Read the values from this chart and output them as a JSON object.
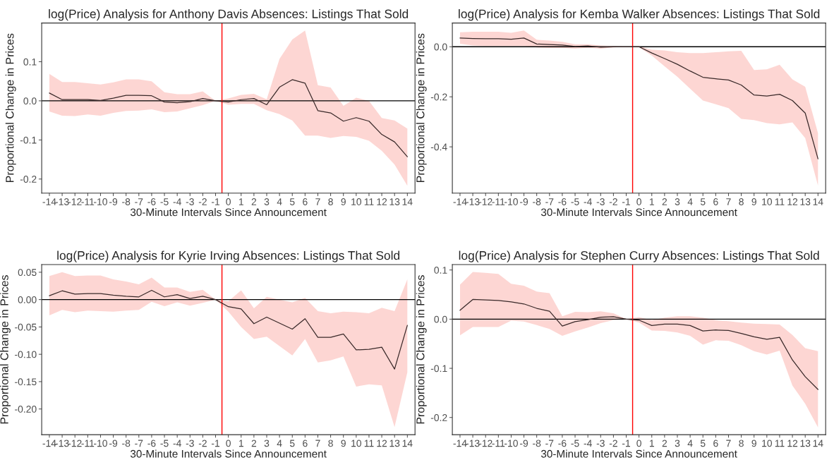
{
  "chart_data": [
    {
      "type": "line",
      "title": "log(Price) Analysis for Anthony Davis Absences: Listings That Sold",
      "xlabel": "30-Minute Intervals Since Announcement",
      "ylabel": "Proportional Change in Prices",
      "x": [
        -14,
        -13,
        -12,
        -11,
        -10,
        -9,
        -8,
        -7,
        -6,
        -5,
        -4,
        -3,
        -2,
        -1,
        0,
        1,
        2,
        3,
        4,
        5,
        6,
        7,
        8,
        9,
        10,
        11,
        12,
        13,
        14
      ],
      "xlim": [
        -14.6,
        14.6
      ],
      "xticks": [
        -14,
        -13,
        -12,
        -11,
        -10,
        -9,
        -8,
        -7,
        -6,
        -5,
        -4,
        -3,
        -2,
        -1,
        0,
        1,
        2,
        3,
        4,
        5,
        6,
        7,
        8,
        9,
        10,
        11,
        12,
        13,
        14
      ],
      "ylim": [
        -0.236,
        0.199
      ],
      "yticks": [
        -0.2,
        -0.1,
        {
          "value": 0,
          "label": "0.0"
        },
        0.1
      ],
      "grid": false,
      "legend": false,
      "series": [
        {
          "color": "#3a2a2a",
          "values": [
            0.02,
            0.003,
            0.003,
            0.003,
            0.001,
            0.007,
            0.014,
            0.014,
            0.013,
            -0.003,
            -0.005,
            -0.002,
            0.006,
            0,
            -0.003,
            0.003,
            0.006,
            -0.01,
            0.035,
            0.054,
            0.045,
            -0.025,
            -0.031,
            -0.052,
            -0.043,
            -0.052,
            -0.086,
            -0.105,
            -0.143
          ],
          "upper": [
            0.069,
            0.048,
            0.048,
            0.045,
            0.042,
            0.047,
            0.055,
            0.055,
            0.05,
            0.022,
            0.017,
            0.017,
            0.024,
            0,
            0.006,
            0.015,
            0.018,
            0.004,
            0.107,
            0.157,
            0.18,
            0.04,
            0.034,
            -0.013,
            0.008,
            0.0,
            -0.044,
            -0.05,
            -0.071
          ],
          "lower": [
            -0.027,
            -0.038,
            -0.039,
            -0.035,
            -0.038,
            -0.031,
            -0.026,
            -0.025,
            -0.022,
            -0.029,
            -0.027,
            -0.019,
            -0.011,
            0,
            -0.01,
            -0.008,
            -0.008,
            -0.024,
            -0.034,
            -0.05,
            -0.089,
            -0.089,
            -0.095,
            -0.09,
            -0.092,
            -0.102,
            -0.128,
            -0.163,
            -0.217
          ]
        }
      ],
      "ref_lines": [
        {
          "axis": "y",
          "value": 0,
          "color": "#000000"
        },
        {
          "axis": "x",
          "value": -0.5,
          "color": "#ff0000"
        }
      ]
    },
    {
      "type": "line",
      "title": "log(Price) Analysis for Kemba Walker Absences: Listings That Sold",
      "xlabel": "30-Minute Intervals Since Announcement",
      "ylabel": "Proportional Change in Prices",
      "x": [
        -14,
        -13,
        -12,
        -11,
        -10,
        -9,
        -8,
        -7,
        -6,
        -5,
        -4,
        -3,
        -2,
        -1,
        0,
        1,
        2,
        3,
        4,
        5,
        6,
        7,
        8,
        9,
        10,
        11,
        12,
        13,
        14
      ],
      "xlim": [
        -14.6,
        14.6
      ],
      "xticks": [
        -14,
        -13,
        -12,
        -11,
        -10,
        -9,
        -8,
        -7,
        -6,
        -5,
        -4,
        -3,
        -2,
        -1,
        0,
        1,
        2,
        3,
        4,
        5,
        6,
        7,
        8,
        9,
        10,
        11,
        12,
        13,
        14
      ],
      "ylim": [
        -0.585,
        0.095
      ],
      "yticks": [
        -0.4,
        -0.2,
        {
          "value": 0,
          "label": "0.0"
        }
      ],
      "grid": false,
      "legend": false,
      "series": [
        {
          "color": "#3a2a2a",
          "values": [
            0.035,
            0.033,
            0.032,
            0.032,
            0.03,
            0.035,
            0.011,
            0.009,
            0.007,
            0.001,
            0.003,
            -0.002,
            0.0,
            0,
            0,
            -0.025,
            -0.047,
            -0.07,
            -0.097,
            -0.122,
            -0.128,
            -0.133,
            -0.153,
            -0.193,
            -0.197,
            -0.19,
            -0.215,
            -0.265,
            -0.448
          ],
          "upper": [
            0.058,
            0.06,
            0.06,
            0.06,
            0.056,
            0.065,
            0.028,
            0.025,
            0.02,
            0.01,
            0.01,
            0.005,
            0.003,
            0,
            0.002,
            -0.012,
            -0.015,
            -0.022,
            -0.025,
            -0.025,
            -0.022,
            -0.018,
            -0.016,
            -0.093,
            -0.09,
            -0.072,
            -0.13,
            -0.16,
            -0.345
          ],
          "lower": [
            0.012,
            0.005,
            0.003,
            0.003,
            0.003,
            0.003,
            -0.003,
            -0.005,
            -0.005,
            -0.008,
            -0.004,
            -0.008,
            -0.003,
            0,
            -0.002,
            -0.035,
            -0.078,
            -0.12,
            -0.168,
            -0.215,
            -0.23,
            -0.245,
            -0.288,
            -0.293,
            -0.305,
            -0.31,
            -0.302,
            -0.365,
            -0.555
          ]
        }
      ],
      "ref_lines": [
        {
          "axis": "y",
          "value": 0,
          "color": "#000000"
        },
        {
          "axis": "x",
          "value": -0.5,
          "color": "#ff0000"
        }
      ]
    },
    {
      "type": "line",
      "title": "log(Price) Analysis for Kyrie Irving Absences: Listings That Sold",
      "xlabel": "30-Minute Intervals Since Announcement",
      "ylabel": "Proportional Change in Prices",
      "x": [
        -14,
        -13,
        -12,
        -11,
        -10,
        -9,
        -8,
        -7,
        -6,
        -5,
        -4,
        -3,
        -2,
        -1,
        0,
        1,
        2,
        3,
        4,
        5,
        6,
        7,
        8,
        9,
        10,
        11,
        12,
        13,
        14
      ],
      "xlim": [
        -14.6,
        14.6
      ],
      "xticks": [
        -14,
        -13,
        -12,
        -11,
        -10,
        -9,
        -8,
        -7,
        -6,
        -5,
        -4,
        -3,
        -2,
        -1,
        0,
        1,
        2,
        3,
        4,
        5,
        6,
        7,
        8,
        9,
        10,
        11,
        12,
        13,
        14
      ],
      "ylim": [
        -0.247,
        0.064
      ],
      "yticks": [
        {
          "value": -0.2,
          "label": "-0.20"
        },
        {
          "value": -0.15,
          "label": "-0.15"
        },
        {
          "value": -0.1,
          "label": "-0.10"
        },
        {
          "value": -0.05,
          "label": "-0.05"
        },
        {
          "value": 0,
          "label": "0.00"
        },
        {
          "value": 0.05,
          "label": "0.05"
        }
      ],
      "grid": false,
      "legend": false,
      "series": [
        {
          "color": "#3a2a2a",
          "values": [
            0.007,
            0.016,
            0.01,
            0.011,
            0.011,
            0.008,
            0.006,
            0.005,
            0.017,
            0.005,
            0.009,
            0.002,
            0.006,
            0,
            -0.013,
            -0.017,
            -0.044,
            -0.032,
            -0.043,
            -0.054,
            -0.035,
            -0.069,
            -0.069,
            -0.063,
            -0.092,
            -0.091,
            -0.087,
            -0.127,
            -0.047
          ],
          "upper": [
            0.043,
            0.05,
            0.043,
            0.044,
            0.044,
            0.037,
            0.033,
            0.028,
            0.04,
            0.022,
            0.022,
            0.014,
            0.018,
            0.0,
            -0.003,
            0.017,
            -0.016,
            0.005,
            0.0,
            -0.005,
            0.003,
            -0.021,
            -0.025,
            -0.022,
            -0.023,
            -0.025,
            -0.015,
            -0.021,
            0.037
          ],
          "lower": [
            -0.029,
            -0.019,
            -0.023,
            -0.02,
            -0.021,
            -0.022,
            -0.02,
            -0.019,
            -0.004,
            -0.012,
            -0.005,
            -0.011,
            -0.006,
            0,
            -0.022,
            -0.05,
            -0.072,
            -0.068,
            -0.085,
            -0.102,
            -0.072,
            -0.115,
            -0.111,
            -0.104,
            -0.159,
            -0.155,
            -0.157,
            -0.233,
            -0.133
          ]
        }
      ],
      "ref_lines": [
        {
          "axis": "y",
          "value": 0,
          "color": "#000000"
        },
        {
          "axis": "x",
          "value": -0.5,
          "color": "#ff0000"
        }
      ]
    },
    {
      "type": "line",
      "title": "log(Price) Analysis for Stephen Curry Absences: Listings That Sold",
      "xlabel": "30-Minute Intervals Since Announcement",
      "ylabel": "Proportional Change in Prices",
      "x": [
        -14,
        -13,
        -12,
        -11,
        -10,
        -9,
        -8,
        -7,
        -6,
        -5,
        -4,
        -3,
        -2,
        -1,
        0,
        1,
        2,
        3,
        4,
        5,
        6,
        7,
        8,
        9,
        10,
        11,
        12,
        13,
        14
      ],
      "xlim": [
        -14.6,
        14.6
      ],
      "xticks": [
        -14,
        -13,
        -12,
        -11,
        -10,
        -9,
        -8,
        -7,
        -6,
        -5,
        -4,
        -3,
        -2,
        -1,
        0,
        1,
        2,
        3,
        4,
        5,
        6,
        7,
        8,
        9,
        10,
        11,
        12,
        13,
        14
      ],
      "ylim": [
        -0.235,
        0.111
      ],
      "yticks": [
        -0.2,
        -0.1,
        {
          "value": 0,
          "label": "0.0"
        },
        0.1
      ],
      "grid": false,
      "legend": false,
      "series": [
        {
          "color": "#3a2a2a",
          "values": [
            0.018,
            0.04,
            0.039,
            0.038,
            0.035,
            0.031,
            0.022,
            0.016,
            -0.014,
            -0.005,
            -0.001,
            0.004,
            0.005,
            0,
            -0.002,
            -0.013,
            -0.01,
            -0.01,
            -0.013,
            -0.024,
            -0.022,
            -0.023,
            -0.029,
            -0.036,
            -0.041,
            -0.037,
            -0.083,
            -0.117,
            -0.143
          ],
          "upper": [
            0.07,
            0.096,
            0.094,
            0.092,
            0.072,
            0.068,
            0.056,
            0.053,
            0.006,
            0.015,
            0.014,
            0.016,
            0.012,
            0,
            0.004,
            -0.002,
            0.003,
            0.006,
            0.006,
            0.003,
            -0.002,
            -0.004,
            -0.007,
            -0.009,
            -0.01,
            -0.011,
            -0.032,
            -0.059,
            -0.065
          ],
          "lower": [
            -0.033,
            -0.016,
            -0.016,
            -0.016,
            -0.003,
            -0.005,
            -0.012,
            -0.02,
            -0.034,
            -0.025,
            -0.017,
            -0.008,
            -0.002,
            0,
            -0.007,
            -0.023,
            -0.024,
            -0.027,
            -0.034,
            -0.052,
            -0.043,
            -0.044,
            -0.053,
            -0.065,
            -0.072,
            -0.064,
            -0.135,
            -0.172,
            -0.22
          ]
        }
      ],
      "ref_lines": [
        {
          "axis": "y",
          "value": 0,
          "color": "#000000"
        },
        {
          "axis": "x",
          "value": -0.5,
          "color": "#ff0000"
        }
      ]
    }
  ]
}
